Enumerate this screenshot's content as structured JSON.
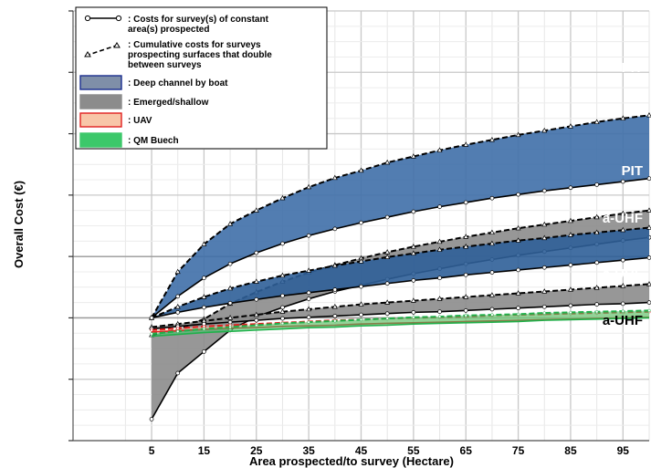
{
  "chart_data": {
    "type": "area",
    "title": "",
    "xlabel": "Area prospected/to survey (Hectare)",
    "ylabel": "Overall Cost (€)",
    "x": [
      5,
      10,
      15,
      20,
      25,
      30,
      35,
      40,
      45,
      50,
      55,
      60,
      65,
      70,
      75,
      80,
      85,
      90,
      95,
      100
    ],
    "xticks": [
      "5",
      "15",
      "25",
      "35",
      "45",
      "55",
      "65",
      "75",
      "85",
      "95"
    ],
    "xlim": [
      -10,
      100
    ],
    "ylim": [
      -20,
      50
    ],
    "grid": true,
    "legend": {
      "placement": "top-left",
      "entries": [
        {
          "symbol": "line-circle",
          "text": ":  Costs for survey(s) of constant area(s) prospected"
        },
        {
          "symbol": "dash-triangle",
          "text": ": Cumulative costs for surveys prospecting surfaces that double between surveys"
        },
        {
          "symbol": "box",
          "color": "#7f8fa8",
          "border": "#1a2d8f",
          "text": ": Deep channel by boat"
        },
        {
          "symbol": "box",
          "color": "#8c8c8c",
          "border": "#8c8c8c",
          "text": ": Emerged/shallow"
        },
        {
          "symbol": "box",
          "color": "#f8c6a8",
          "border": "#e02020",
          "text": ": UAV"
        },
        {
          "symbol": "box",
          "color": "#3cc86a",
          "border": "#3cc86a",
          "text": ": QM Buech"
        }
      ]
    },
    "series": [
      {
        "category": "Deep channel by boat",
        "label": "PIT",
        "color": "#3f6fa8",
        "upper": [
          0.0,
          7.5,
          12.0,
          15.3,
          17.5,
          19.5,
          21.3,
          22.8,
          24.0,
          25.3,
          26.3,
          27.3,
          28.2,
          29.0,
          29.8,
          30.5,
          31.2,
          31.9,
          32.5,
          33.0
        ],
        "lower": [
          0.0,
          3.5,
          6.5,
          8.8,
          10.6,
          12.1,
          13.4,
          14.5,
          15.5,
          16.4,
          17.3,
          18.1,
          18.8,
          19.5,
          20.1,
          20.7,
          21.2,
          21.7,
          22.2,
          22.7
        ]
      },
      {
        "category": "Emerged/shallow",
        "label": "PIT",
        "color": "#8c8c8c",
        "upper": [
          -2.8,
          -1.9,
          -0.2,
          2.3,
          4.2,
          5.9,
          7.4,
          8.6,
          9.7,
          10.7,
          11.6,
          12.4,
          13.2,
          13.9,
          14.6,
          15.2,
          15.8,
          16.4,
          17.0,
          17.5
        ],
        "lower": [
          -16.5,
          -9.0,
          -5.5,
          -2.0,
          0.2,
          1.7,
          3.1,
          4.3,
          5.3,
          6.3,
          7.2,
          8.0,
          8.8,
          9.5,
          10.2,
          10.8,
          11.4,
          12.0,
          12.6,
          13.1
        ]
      },
      {
        "category": "Deep channel by boat",
        "label": "a-UHF",
        "color": "#2f5f98",
        "upper": [
          0.0,
          1.8,
          3.4,
          4.8,
          5.9,
          6.9,
          7.7,
          8.5,
          9.2,
          9.9,
          10.5,
          11.1,
          11.6,
          12.1,
          12.6,
          13.0,
          13.5,
          13.9,
          14.3,
          14.7
        ],
        "lower": [
          0.0,
          0.9,
          1.7,
          2.4,
          3.0,
          3.6,
          4.1,
          4.6,
          5.1,
          5.6,
          6.1,
          6.5,
          7.0,
          7.4,
          7.8,
          8.2,
          8.6,
          9.0,
          9.4,
          9.8
        ]
      },
      {
        "category": "Emerged/shallow",
        "label": "a-UHF",
        "color": "#8c8c8c",
        "upper": [
          -1.5,
          -1.0,
          -0.5,
          0.0,
          0.5,
          1.0,
          1.4,
          1.8,
          2.2,
          2.5,
          2.8,
          3.1,
          3.4,
          3.7,
          4.0,
          4.3,
          4.6,
          4.9,
          5.2,
          5.5
        ],
        "lower": [
          -1.8,
          -1.4,
          -1.0,
          -0.7,
          -0.4,
          -0.1,
          0.1,
          0.3,
          0.5,
          0.7,
          0.9,
          1.0,
          1.2,
          1.4,
          1.6,
          1.8,
          2.0,
          2.2,
          2.3,
          2.5
        ]
      },
      {
        "category": "UAV",
        "label": "a-UHF",
        "color": "#f8c6a8",
        "border": "#e02020",
        "upper": [
          -2.0,
          -1.7,
          -1.4,
          -1.2,
          -1.0,
          -0.8,
          -0.6,
          -0.4,
          -0.3,
          -0.1,
          0.0,
          0.1,
          0.2,
          0.4,
          0.5,
          0.6,
          0.7,
          0.8,
          0.9,
          1.0
        ],
        "lower": [
          -2.3,
          -2.1,
          -1.9,
          -1.7,
          -1.6,
          -1.4,
          -1.3,
          -1.2,
          -1.0,
          -0.9,
          -0.8,
          -0.7,
          -0.6,
          -0.5,
          -0.4,
          -0.3,
          -0.2,
          -0.1,
          0.0,
          0.1
        ]
      },
      {
        "category": "QM Buech",
        "color": "#3cc86a",
        "upper": [
          -2.6,
          -2.2,
          -1.8,
          -1.5,
          -1.2,
          -0.9,
          -0.7,
          -0.5,
          -0.3,
          -0.1,
          0.1,
          0.2,
          0.4,
          0.5,
          0.6,
          0.8,
          0.9,
          1.0,
          1.1,
          1.2
        ],
        "lower": [
          -3.0,
          -2.7,
          -2.4,
          -2.2,
          -2.0,
          -1.8,
          -1.6,
          -1.5,
          -1.3,
          -1.2,
          -1.0,
          -0.9,
          -0.8,
          -0.7,
          -0.6,
          -0.4,
          -0.3,
          -0.2,
          -0.1,
          0.0
        ]
      }
    ]
  }
}
